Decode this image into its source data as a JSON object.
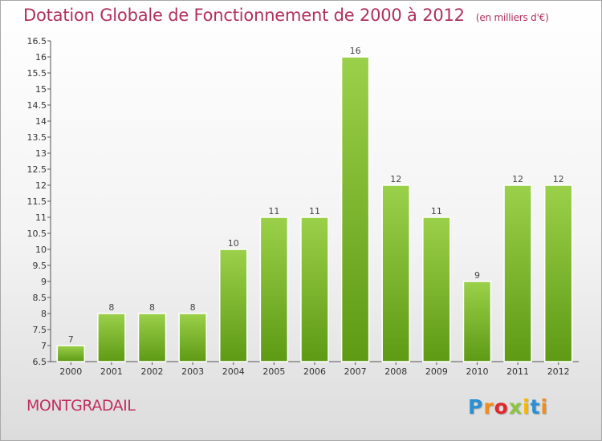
{
  "header": {
    "title": "Dotation Globale de Fonctionnement de 2000 à 2012",
    "subtitle": "(en milliers d'€)"
  },
  "footer": {
    "municipality": "MONTGRADAIL",
    "logo_text": "Proxiti",
    "logo_colors": [
      "#2a8fd4",
      "#f28c1a",
      "#e0282a",
      "#8bc53f",
      "#f5b800"
    ]
  },
  "colors": {
    "title": "#b0305c",
    "bar_top": "#9bd04a",
    "bar_bottom": "#5e9a14",
    "axis": "#333333"
  },
  "chart_data": {
    "type": "bar",
    "title": "Dotation Globale de Fonctionnement de 2000 à 2012",
    "subtitle": "(en milliers d'€)",
    "xlabel": "",
    "ylabel": "",
    "categories": [
      "2000",
      "2001",
      "2002",
      "2003",
      "2004",
      "2005",
      "2006",
      "2007",
      "2008",
      "2009",
      "2010",
      "2011",
      "2012"
    ],
    "values": [
      7,
      8,
      8,
      8,
      10,
      11,
      11,
      16,
      12,
      11,
      9,
      12,
      12
    ],
    "data_labels": [
      "7",
      "8",
      "8",
      "8",
      "10",
      "11",
      "11",
      "16",
      "12",
      "11",
      "9",
      "12",
      "12"
    ],
    "ylim": [
      6.5,
      16.5
    ],
    "yticks": [
      "6.5",
      "7",
      "7.5",
      "8",
      "8.5",
      "9",
      "9.5",
      "10",
      "10.5",
      "11",
      "11.5",
      "12",
      "12.5",
      "13",
      "13.5",
      "14",
      "14.5",
      "15",
      "15.5",
      "16",
      "16.5"
    ],
    "grid": false,
    "legend": "none"
  }
}
